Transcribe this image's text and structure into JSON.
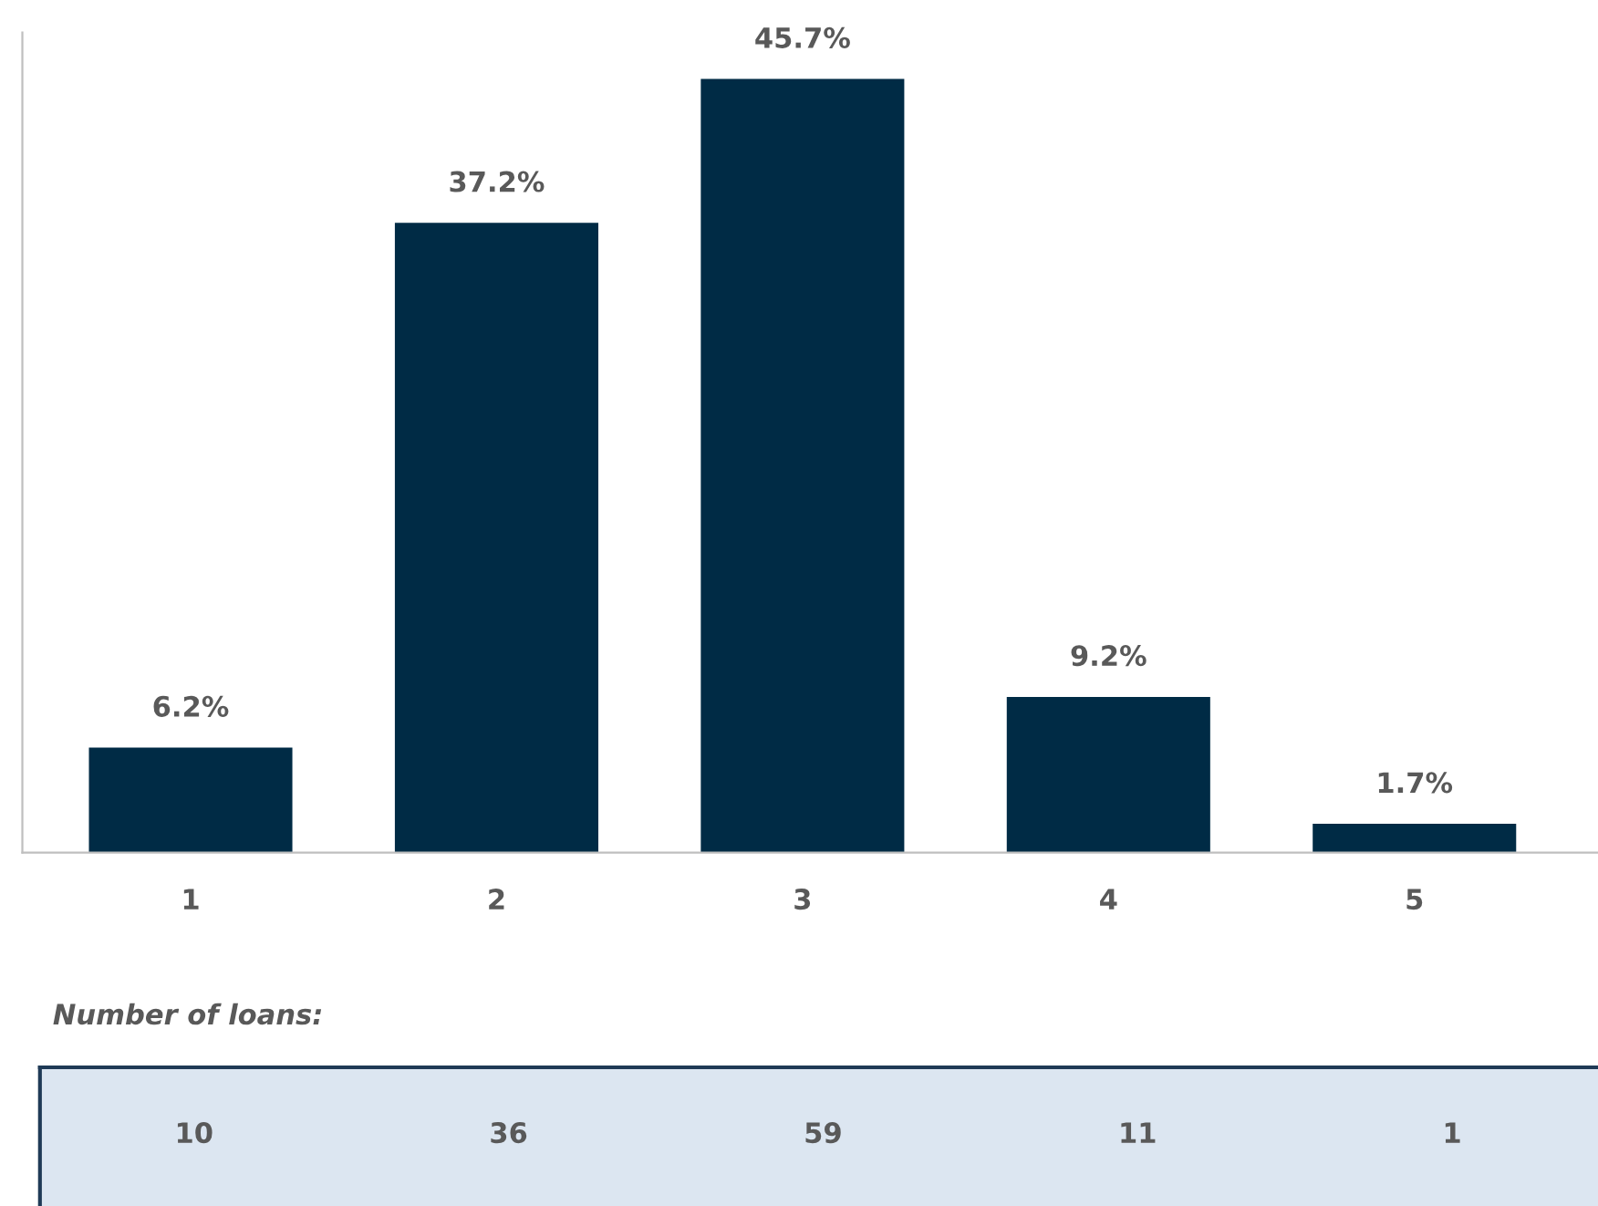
{
  "chart_data": [
    {
      "type": "bar",
      "categories": [
        "1",
        "2",
        "3",
        "4",
        "5"
      ],
      "values": [
        6.2,
        37.2,
        45.7,
        9.2,
        1.7
      ],
      "color": "#002b45",
      "data_labels": true,
      "value_labels": [
        "6.2%",
        "37.2%",
        "45.7%",
        "9.2%",
        "1.7%"
      ],
      "grid": false,
      "legend": false
    },
    {
      "type": "other",
      "title": "Number of loans:",
      "values": [
        10,
        36,
        59,
        11,
        1
      ],
      "data_labels": true,
      "value_labels": [
        "10",
        "36",
        "59",
        "11",
        "1"
      ],
      "color": "#dce6f1"
    }
  ]
}
